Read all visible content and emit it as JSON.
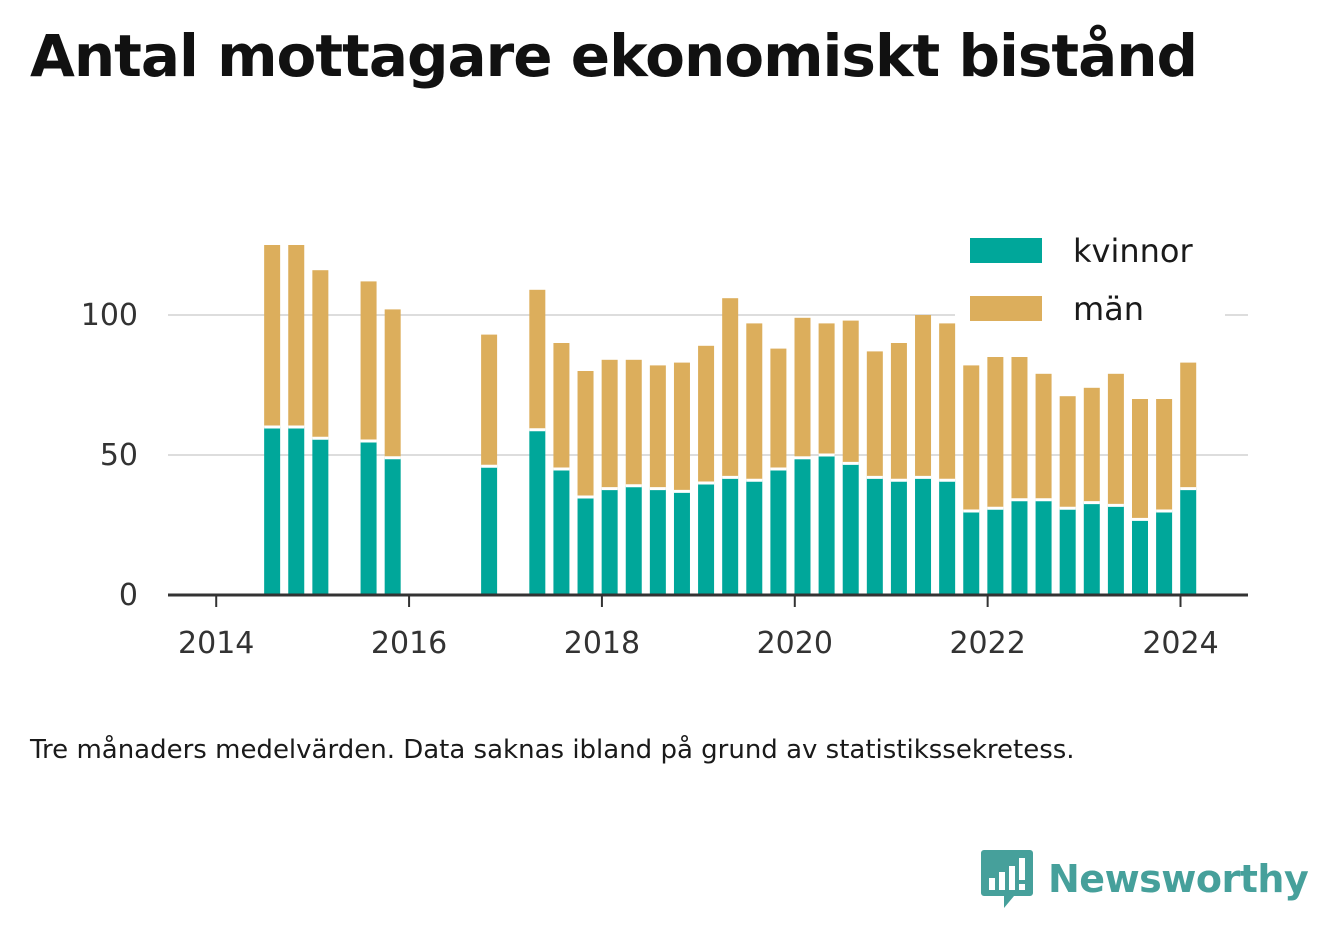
{
  "title": "Antal mottagare ekonomiskt bistånd",
  "note": "Tre månaders medelvärden. Data saknas ibland på grund av statistikssekretess.",
  "logo": {
    "text": "Newsworthy",
    "icon": "bar-chart-speech-bubble-icon"
  },
  "colors": {
    "kvinnor": "#00a79a",
    "man": "#dcae5c",
    "axis": "#333333",
    "grid": "#dddddd"
  },
  "chart_data": {
    "type": "bar",
    "stacked": true,
    "title": "Antal mottagare ekonomiskt bistånd",
    "xlabel": "",
    "ylabel": "",
    "ylim": [
      0,
      125
    ],
    "xlim": [
      2013.5,
      2024.7
    ],
    "y_ticks": [
      0,
      50,
      100
    ],
    "x_ticks": [
      2014,
      2016,
      2018,
      2020,
      2022,
      2024
    ],
    "grid": "horizontal",
    "legend_position": "top-right",
    "x": [
      2014.58,
      2014.83,
      2015.08,
      2015.58,
      2015.83,
      2016.83,
      2017.33,
      2017.58,
      2017.83,
      2018.08,
      2018.33,
      2018.58,
      2018.83,
      2019.08,
      2019.33,
      2019.58,
      2019.83,
      2020.08,
      2020.33,
      2020.58,
      2020.83,
      2021.08,
      2021.33,
      2021.58,
      2021.83,
      2022.08,
      2022.33,
      2022.58,
      2022.83,
      2023.08,
      2023.33,
      2023.58,
      2023.83,
      2024.08
    ],
    "series": [
      {
        "name": "kvinnor",
        "values": [
          60,
          60,
          56,
          55,
          49,
          46,
          59,
          45,
          35,
          38,
          39,
          38,
          37,
          40,
          42,
          41,
          45,
          49,
          50,
          47,
          42,
          41,
          42,
          41,
          30,
          31,
          34,
          34,
          31,
          33,
          32,
          27,
          30,
          38
        ]
      },
      {
        "name": "män",
        "values": [
          65,
          65,
          60,
          57,
          53,
          47,
          50,
          45,
          45,
          46,
          45,
          44,
          46,
          49,
          64,
          56,
          43,
          50,
          47,
          51,
          45,
          49,
          58,
          56,
          52,
          54,
          51,
          45,
          40,
          41,
          47,
          43,
          40,
          45
        ]
      }
    ]
  }
}
